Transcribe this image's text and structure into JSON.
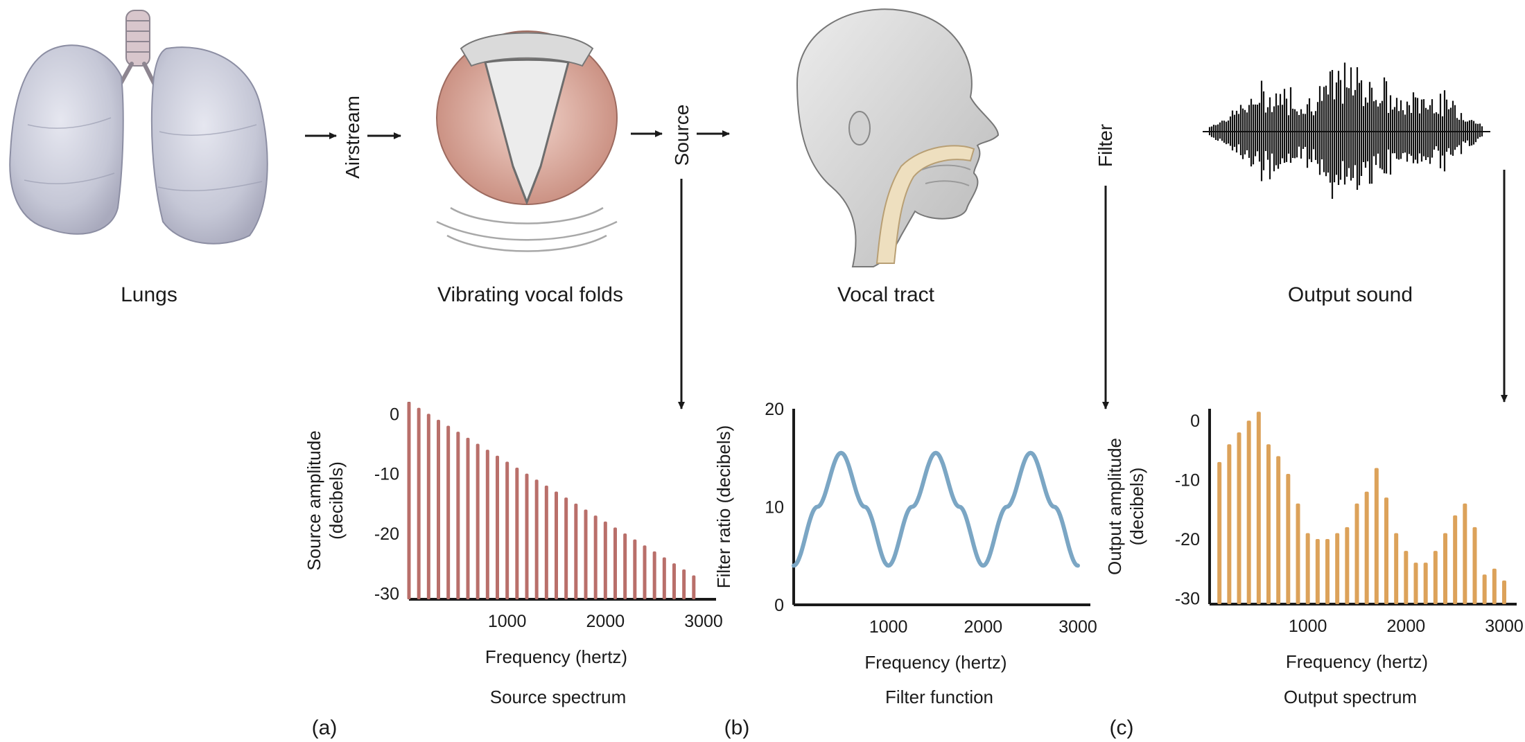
{
  "stages": [
    {
      "label": "Lungs",
      "icon": "lungs-illustration"
    },
    {
      "label": "Vibrating vocal folds",
      "icon": "vocal-folds-illustration"
    },
    {
      "label": "Vocal tract",
      "icon": "head-vocal-tract-illustration"
    },
    {
      "label": "Output sound",
      "icon": "waveform-illustration"
    }
  ],
  "flow": {
    "airstream": "Airstream",
    "source": "Source",
    "filter": "Filter"
  },
  "chart_data": [
    {
      "type": "bar",
      "panel": "(a)",
      "caption": "Source spectrum",
      "xlabel": "Frequency (hertz)",
      "ylabel": [
        "Source amplitude",
        "(decibels)"
      ],
      "xticks": [
        "1000",
        "2000",
        "3000"
      ],
      "yticks": [
        "0",
        "-10",
        "-20",
        "-30"
      ],
      "xlim": [
        0,
        3000
      ],
      "ylim": [
        -31,
        2
      ],
      "x": [
        0,
        100,
        200,
        300,
        400,
        500,
        600,
        700,
        800,
        900,
        1000,
        1100,
        1200,
        1300,
        1400,
        1500,
        1600,
        1700,
        1800,
        1900,
        2000,
        2100,
        2200,
        2300,
        2400,
        2500,
        2600,
        2700,
        2800,
        2900
      ],
      "values": [
        2,
        1,
        0,
        -1,
        -2,
        -3,
        -4,
        -5,
        -6,
        -7,
        -8,
        -9,
        -10,
        -11,
        -12,
        -13,
        -14,
        -15,
        -16,
        -17,
        -18,
        -19,
        -20,
        -21,
        -22,
        -23,
        -24,
        -25,
        -26,
        -27
      ],
      "color": "#b96f6a"
    },
    {
      "type": "line",
      "panel": "(b)",
      "caption": "Filter function",
      "xlabel": "Frequency (hertz)",
      "ylabel": [
        "Filter ratio (decibels)"
      ],
      "xticks": [
        "1000",
        "2000",
        "3000"
      ],
      "yticks": [
        "0",
        "10",
        "20"
      ],
      "xlim": [
        0,
        3000
      ],
      "ylim": [
        0,
        20
      ],
      "x": [
        0,
        250,
        500,
        750,
        1000,
        1250,
        1500,
        1750,
        2000,
        2250,
        2500,
        2750,
        3000
      ],
      "values": [
        4,
        10,
        15.5,
        10,
        4,
        10,
        15.5,
        10,
        4,
        10,
        15.5,
        10,
        4
      ],
      "color": "#7ba6c4"
    },
    {
      "type": "bar",
      "panel": "(c)",
      "caption": "Output spectrum",
      "xlabel": "Frequency (hertz)",
      "ylabel": [
        "Output amplitude",
        "(decibels)"
      ],
      "xticks": [
        "1000",
        "2000",
        "3000"
      ],
      "yticks": [
        "0",
        "-10",
        "-20",
        "-30"
      ],
      "xlim": [
        0,
        3000
      ],
      "ylim": [
        -31,
        2
      ],
      "x": [
        100,
        200,
        300,
        400,
        500,
        600,
        700,
        800,
        900,
        1000,
        1100,
        1200,
        1300,
        1400,
        1500,
        1600,
        1700,
        1800,
        1900,
        2000,
        2100,
        2200,
        2300,
        2400,
        2500,
        2600,
        2700,
        2800,
        2900,
        3000
      ],
      "values": [
        -7,
        -4,
        -2,
        0,
        1.5,
        -4,
        -6,
        -9,
        -14,
        -19,
        -20,
        -20,
        -19,
        -18,
        -14,
        -12,
        -8,
        -13,
        -19,
        -22,
        -24,
        -24,
        -22,
        -19,
        -16,
        -14,
        -18,
        -26,
        -25,
        -27
      ],
      "color": "#dca25a"
    }
  ],
  "colors": {
    "ink": "#1a1a1a",
    "lung": "#c9cbd8",
    "fold": "#c98f82",
    "skin": "#d9d9d9",
    "tract": "#eedfbf"
  }
}
